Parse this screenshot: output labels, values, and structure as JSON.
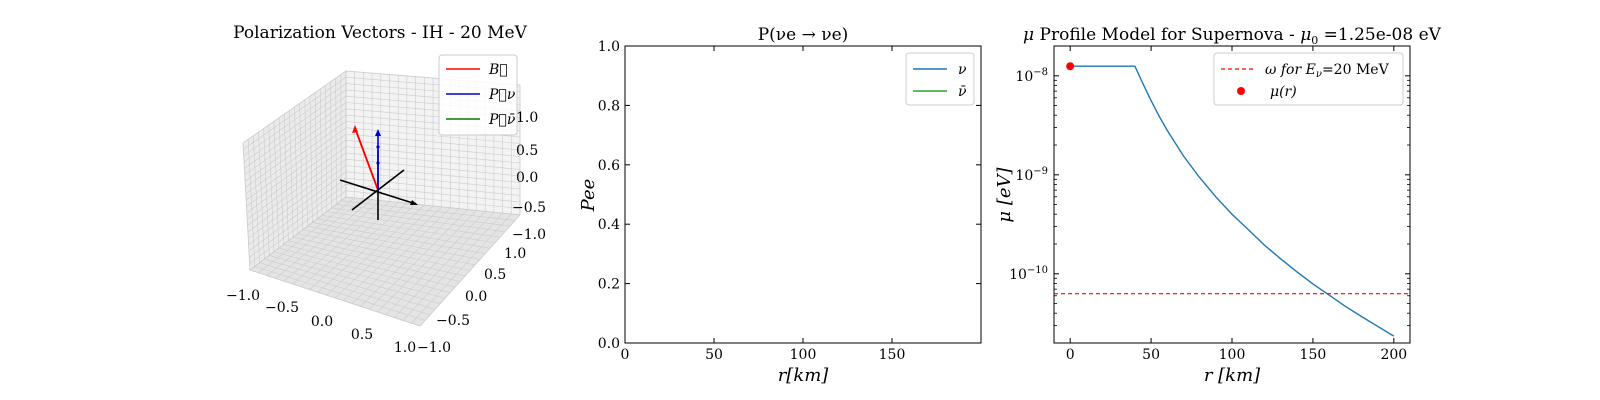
{
  "chart_data": [
    {
      "type": "line",
      "projection": "3d",
      "title": "Polarization Vectors - IH - 20 MeV",
      "xlim": [
        -1.0,
        1.0
      ],
      "ylim": [
        -1.0,
        1.0
      ],
      "zlim": [
        -1.0,
        1.0
      ],
      "x_ticks": [
        "−1.0",
        "−0.5",
        "0.0",
        "0.5",
        "1.0"
      ],
      "y_ticks": [
        "−1.0",
        "−0.5",
        "0.0",
        "0.5",
        "1.0"
      ],
      "z_ticks": [
        "−1.0",
        "−0.5",
        "0.0",
        "0.5",
        "1.0"
      ],
      "legend_position": "top-right",
      "series": [
        {
          "name": "B",
          "legend_label": "B⃗",
          "color": "#ff0000",
          "vector": [
            0.0,
            0.0,
            1.0
          ]
        },
        {
          "name": "P_ν",
          "legend_label": "P⃗ν",
          "color": "#0000cc",
          "vector": [
            0.0,
            0.0,
            1.0
          ]
        },
        {
          "name": "P_ν̄",
          "legend_label": "P⃗ν̄",
          "color": "#008000",
          "vector": [
            0.0,
            0.0,
            0.0
          ]
        }
      ]
    },
    {
      "type": "line",
      "title": "P(νe → νe)",
      "xlabel": "r[km]",
      "ylabel": "Pee",
      "xlim": [
        0,
        200
      ],
      "ylim": [
        0.0,
        1.0
      ],
      "x_ticks": [
        0,
        50,
        100,
        150
      ],
      "y_ticks": [
        0.0,
        0.2,
        0.4,
        0.6,
        0.8,
        1.0
      ],
      "y_tick_labels": [
        "0.0",
        "0.2",
        "0.4",
        "0.6",
        "0.8",
        "1.0"
      ],
      "legend_position": "top-right",
      "series": [
        {
          "name": "ν",
          "color": "#1f77b4",
          "x": [],
          "y": []
        },
        {
          "name": "ν̄",
          "color": "#2ca02c",
          "x": [],
          "y": []
        }
      ]
    },
    {
      "type": "line",
      "title_parts": {
        "mu": "μ",
        "main": " Profile Model for Supernova - ",
        "mu0": "μ",
        "mu0_sub": "0",
        "value": " =1.25e-08 eV"
      },
      "xlabel": "r [km]",
      "ylabel": "μ [eV]",
      "y_scale": "log",
      "xlim": [
        -10,
        210
      ],
      "ylim": [
        2e-11,
        2e-08
      ],
      "x_ticks": [
        0,
        50,
        100,
        150,
        200
      ],
      "y_ticks": [
        1e-10,
        1e-09,
        1e-08
      ],
      "y_tick_labels": [
        [
          "10",
          "−10"
        ],
        [
          "10",
          "−9"
        ],
        [
          "10",
          "−8"
        ]
      ],
      "legend_position": "top-right",
      "series": [
        {
          "name": "μ(r)",
          "color": "#1f77b4",
          "x": [
            0,
            40,
            45,
            50,
            55,
            60,
            70,
            80,
            90,
            100,
            110,
            120,
            130,
            140,
            150,
            160,
            170,
            180,
            190,
            200
          ],
          "y": [
            1.25e-08,
            1.25e-08,
            8.3e-09,
            5.6e-09,
            3.9e-09,
            2.8e-09,
            1.55e-09,
            9.4e-10,
            6e-10,
            4e-10,
            2.8e-10,
            1.95e-10,
            1.42e-10,
            1.05e-10,
            7.9e-11,
            6.1e-11,
            4.7e-11,
            3.7e-11,
            2.95e-11,
            2.35e-11
          ]
        },
        {
          "name": "ω for Eν=20 MeV",
          "color": "#ff0000",
          "style": "dashed",
          "y": 6.3e-11
        },
        {
          "name": "μ(r) point",
          "color": "#ff0000",
          "marker": "circle",
          "x": [
            0
          ],
          "y": [
            1.25e-08
          ]
        }
      ],
      "legend": [
        {
          "parts": [
            "ω for ",
            "E",
            "ν",
            "=20 MeV"
          ],
          "color": "#ff0000",
          "style": "dashed"
        },
        {
          "parts": [
            "μ(r)"
          ],
          "color": "#ff0000",
          "style": "marker"
        }
      ]
    }
  ]
}
